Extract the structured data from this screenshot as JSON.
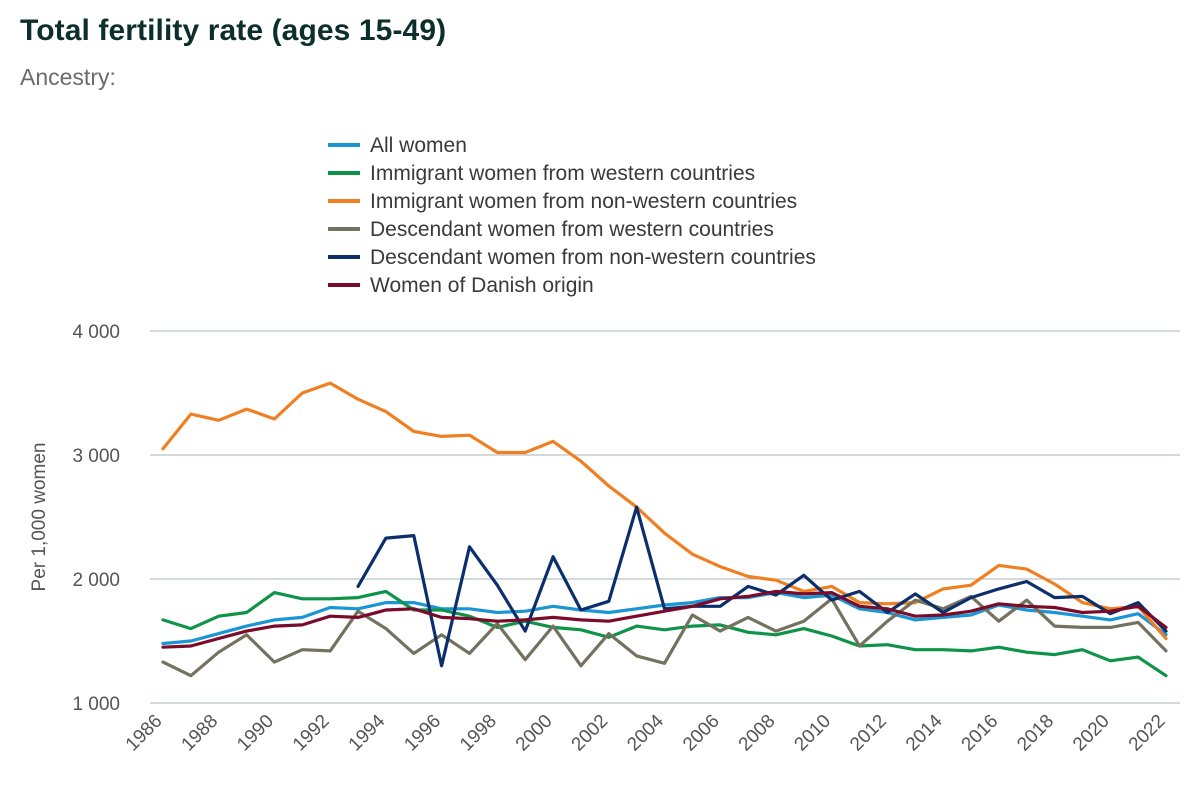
{
  "header": {
    "title": "Total fertility rate (ages 15-49)",
    "subtitle": "Ancestry:"
  },
  "chart_data": {
    "type": "line",
    "title": "Total fertility rate (ages 15-49)",
    "ylabel": "Per 1,000 women",
    "xlabel": "",
    "ylim": [
      1000,
      4000
    ],
    "yticks": [
      1000,
      2000,
      3000,
      4000
    ],
    "ytick_labels": [
      "1 000",
      "2 000",
      "3 000",
      "4 000"
    ],
    "xticks": [
      1986,
      1988,
      1990,
      1992,
      1994,
      1996,
      1998,
      2000,
      2002,
      2004,
      2006,
      2008,
      2010,
      2012,
      2014,
      2016,
      2018,
      2020,
      2022
    ],
    "grid": "horizontal",
    "legend_position": "top",
    "x": [
      1986,
      1987,
      1988,
      1989,
      1990,
      1991,
      1992,
      1993,
      1994,
      1995,
      1996,
      1997,
      1998,
      1999,
      2000,
      2001,
      2002,
      2003,
      2004,
      2005,
      2006,
      2007,
      2008,
      2009,
      2010,
      2011,
      2012,
      2013,
      2014,
      2015,
      2016,
      2017,
      2018,
      2019,
      2020,
      2021,
      2022
    ],
    "series": [
      {
        "name": "All women",
        "color": "#1b95d3",
        "values": [
          1480,
          1500,
          1560,
          1620,
          1670,
          1690,
          1770,
          1760,
          1810,
          1810,
          1760,
          1760,
          1730,
          1740,
          1780,
          1750,
          1730,
          1760,
          1790,
          1810,
          1850,
          1850,
          1890,
          1850,
          1870,
          1760,
          1730,
          1670,
          1690,
          1710,
          1790,
          1750,
          1730,
          1700,
          1670,
          1720,
          1550
        ]
      },
      {
        "name": "Immigrant women from western countries",
        "color": "#0f9348",
        "values": [
          1670,
          1600,
          1700,
          1730,
          1890,
          1840,
          1840,
          1850,
          1900,
          1750,
          1750,
          1700,
          1610,
          1660,
          1610,
          1590,
          1530,
          1620,
          1590,
          1620,
          1630,
          1570,
          1550,
          1600,
          1540,
          1460,
          1470,
          1430,
          1430,
          1420,
          1450,
          1410,
          1390,
          1430,
          1340,
          1370,
          1220
        ]
      },
      {
        "name": "Immigrant women from non-western countries",
        "color": "#f07f22",
        "values": [
          3050,
          3330,
          3280,
          3370,
          3290,
          3500,
          3580,
          3450,
          3350,
          3190,
          3150,
          3160,
          3020,
          3020,
          3110,
          2950,
          2750,
          2580,
          2370,
          2200,
          2100,
          2020,
          1990,
          1900,
          1940,
          1810,
          1800,
          1810,
          1920,
          1950,
          2110,
          2080,
          1960,
          1810,
          1760,
          1780,
          1520
        ]
      },
      {
        "name": "Descendant women from western countries",
        "color": "#74715e",
        "values": [
          1330,
          1220,
          1410,
          1550,
          1330,
          1430,
          1420,
          1740,
          1600,
          1400,
          1550,
          1400,
          1640,
          1350,
          1620,
          1300,
          1560,
          1380,
          1320,
          1710,
          1580,
          1690,
          1580,
          1660,
          1840,
          1460,
          1660,
          1830,
          1760,
          1860,
          1660,
          1830,
          1620,
          1610,
          1610,
          1650,
          1420
        ]
      },
      {
        "name": "Descendant women from non-western countries",
        "color": "#0b2f6b",
        "values": [
          null,
          null,
          null,
          null,
          null,
          null,
          null,
          1940,
          2330,
          2350,
          1300,
          2260,
          1950,
          1580,
          2180,
          1750,
          1820,
          2580,
          1760,
          1780,
          1780,
          1940,
          1870,
          2030,
          1830,
          1900,
          1730,
          1880,
          1730,
          1850,
          1920,
          1980,
          1850,
          1860,
          1720,
          1810,
          1580
        ]
      },
      {
        "name": "Women of Danish origin",
        "color": "#7a0c2b",
        "values": [
          1450,
          1460,
          1520,
          1580,
          1620,
          1630,
          1700,
          1690,
          1750,
          1760,
          1690,
          1680,
          1660,
          1670,
          1690,
          1670,
          1660,
          1700,
          1740,
          1780,
          1840,
          1860,
          1900,
          1880,
          1890,
          1780,
          1760,
          1700,
          1710,
          1740,
          1800,
          1780,
          1770,
          1730,
          1740,
          1780,
          1610
        ]
      }
    ]
  }
}
